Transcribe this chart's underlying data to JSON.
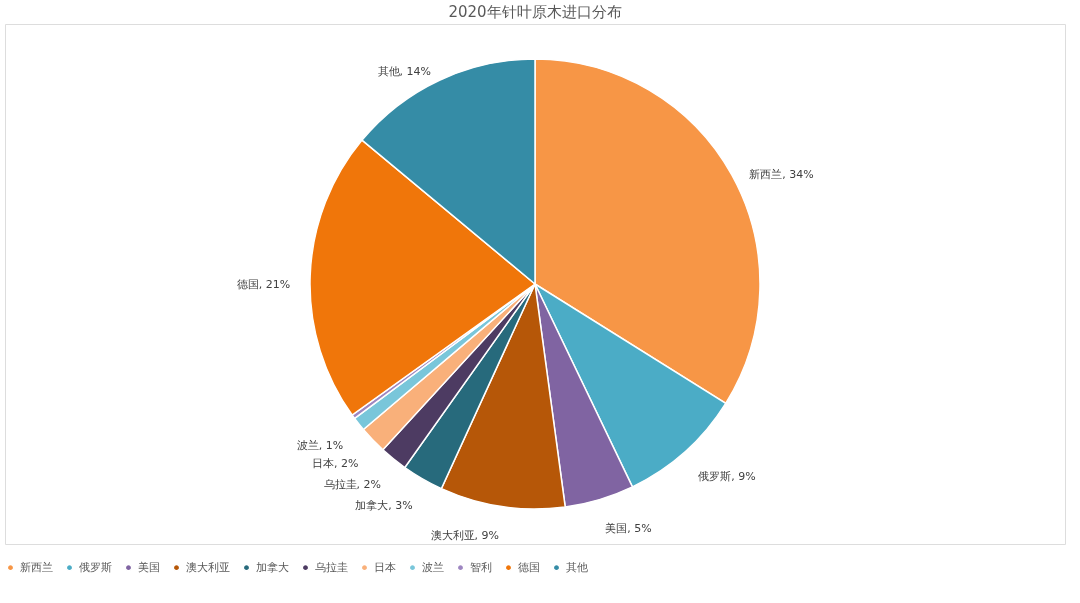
{
  "chart_data": {
    "type": "pie",
    "title": "2020年针叶原木进口分布",
    "categories": [
      "新西兰",
      "俄罗斯",
      "美国",
      "澳大利亚",
      "加拿大",
      "乌拉圭",
      "日本",
      "波兰",
      "智利",
      "德国",
      "其他"
    ],
    "values": [
      34,
      9,
      5,
      9,
      3,
      2,
      2,
      1,
      0.3,
      21,
      14
    ],
    "colors": [
      "#f79646",
      "#4bacc6",
      "#8064a2",
      "#b65708",
      "#276a7c",
      "#4d3b62",
      "#f9b07a",
      "#79c6da",
      "#9e86c1",
      "#f0760a",
      "#358ca6"
    ],
    "value_labels": [
      "新西兰, 34%",
      "俄罗斯, 9%",
      "美国, 5%",
      "澳大利亚, 9%",
      "加拿大, 3%",
      "乌拉圭, 2%",
      "日本, 2%",
      "波兰, 1%",
      null,
      "德国, 21%",
      "其他, 14%"
    ],
    "legend": "bottom"
  }
}
